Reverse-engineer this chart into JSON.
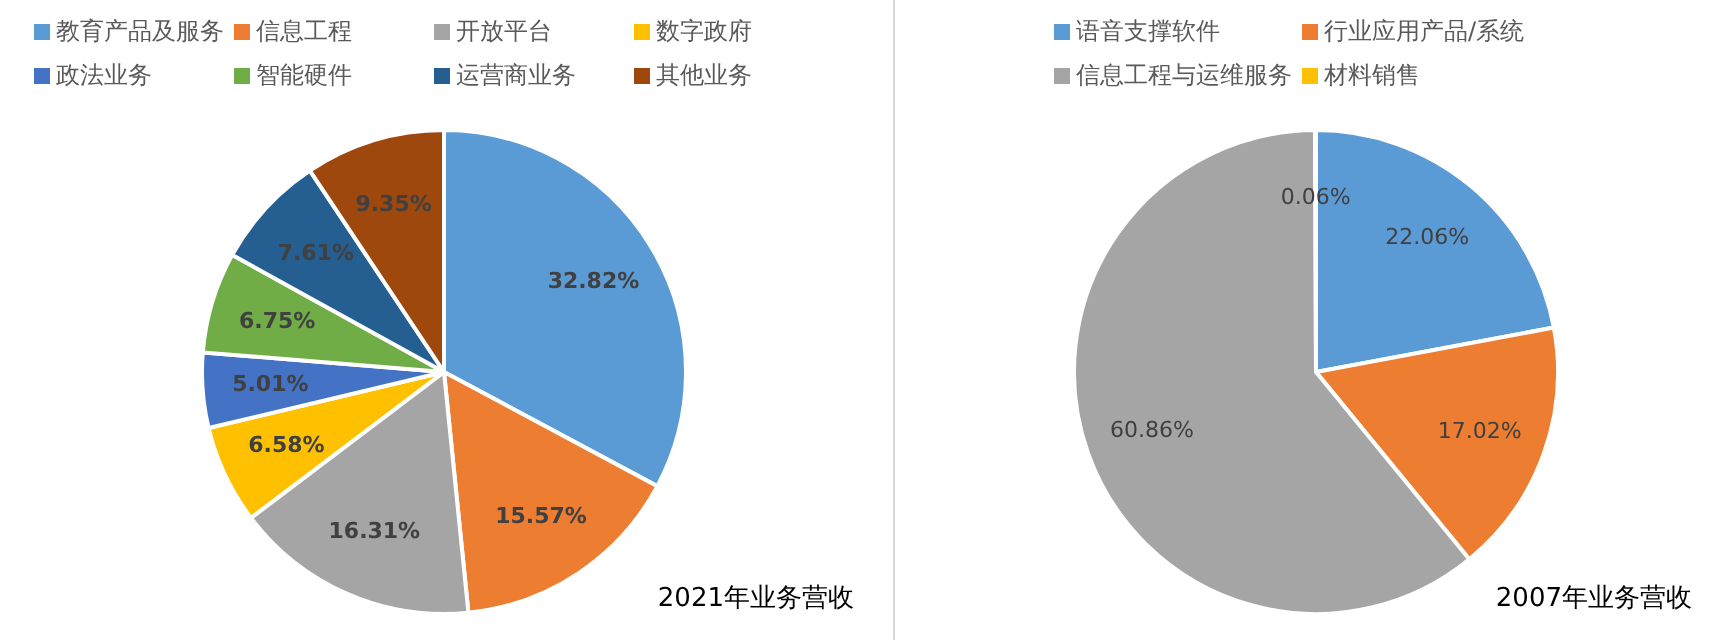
{
  "chart_data": [
    {
      "type": "pie",
      "title": "2021年业务营收",
      "categories": [
        "教育产品及服务",
        "信息工程",
        "开放平台",
        "数字政府",
        "政法业务",
        "智能硬件",
        "运营商业务",
        "其他业务"
      ],
      "values": [
        32.82,
        15.57,
        16.31,
        6.58,
        5.01,
        6.75,
        7.61,
        9.35
      ],
      "value_labels": [
        "32.82%",
        "15.57%",
        "16.31%",
        "6.58%",
        "5.01%",
        "6.75%",
        "7.61%",
        "9.35%"
      ],
      "colors": [
        "#5b9bd5",
        "#ed7d31",
        "#a5a5a5",
        "#ffc000",
        "#4472c4",
        "#70ad47",
        "#255e91",
        "#9e480e"
      ],
      "legend": "top"
    },
    {
      "type": "pie",
      "title": "2007年业务营收",
      "categories": [
        "语音支撑软件",
        "行业应用产品/系统",
        "信息工程与运维服务",
        "材料销售"
      ],
      "values": [
        22.06,
        17.02,
        60.86,
        0.06
      ],
      "value_labels": [
        "22.06%",
        "17.02%",
        "60.86%",
        "0.06%"
      ],
      "colors": [
        "#5b9bd5",
        "#ed7d31",
        "#a5a5a5",
        "#ffc000"
      ],
      "legend": "top"
    }
  ]
}
